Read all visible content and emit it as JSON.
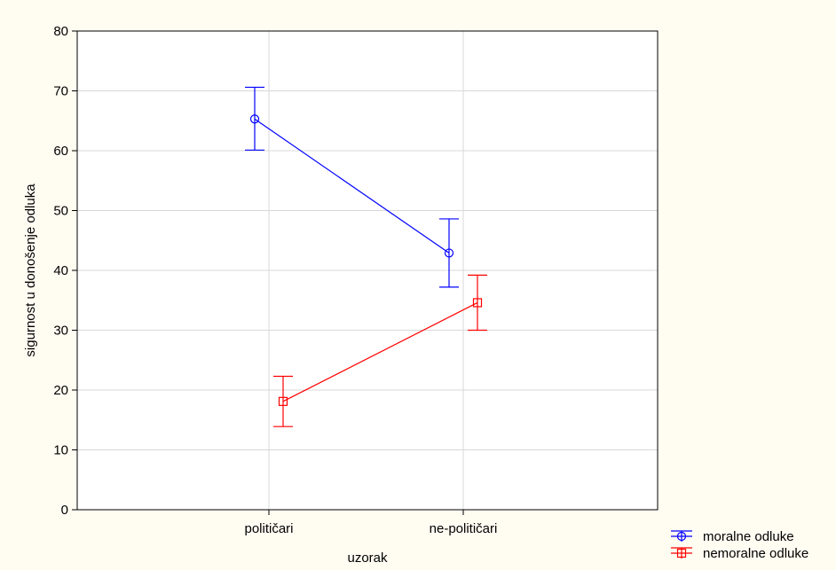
{
  "chart_data": {
    "type": "line",
    "title": "",
    "xlabel": "uzorak",
    "ylabel": "sigurnost u donošenje odluka",
    "categories": [
      "političari",
      "ne-političari"
    ],
    "ylim": [
      0,
      80
    ],
    "yticks": [
      0,
      10,
      20,
      30,
      40,
      50,
      60,
      70,
      80
    ],
    "grid": true,
    "legend_position": "bottom-right",
    "series": [
      {
        "name": "moralne odluke",
        "color": "#0000ff",
        "marker": "circle",
        "values": [
          65.3,
          42.9
        ],
        "error_low": [
          60.1,
          37.2
        ],
        "error_high": [
          70.6,
          48.6
        ]
      },
      {
        "name": "nemoralne odluke",
        "color": "#ff0000",
        "marker": "square",
        "values": [
          18.1,
          34.6
        ],
        "error_low": [
          13.9,
          30.0
        ],
        "error_high": [
          22.3,
          39.2
        ]
      }
    ]
  }
}
